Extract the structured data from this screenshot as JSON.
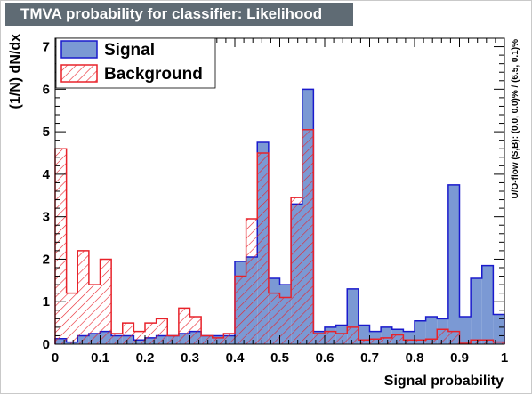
{
  "window": {
    "title": "TMVA probability for classifier: Likelihood"
  },
  "chart_data": {
    "type": "histogram",
    "title": "TMVA probability for classifier: Likelihood",
    "xlabel": "Signal probability",
    "ylabel": "(1/N) dN/dx",
    "side_label": "U/O-flow (S,B): (0.0, 0.0)% / (6.5, 0.1)%",
    "xlim": [
      0,
      1
    ],
    "ylim": [
      0,
      7.2
    ],
    "x_ticks": [
      "0",
      "0.1",
      "0.2",
      "0.3",
      "0.4",
      "0.5",
      "0.6",
      "0.7",
      "0.8",
      "0.9",
      "1"
    ],
    "y_ticks": [
      "0",
      "1",
      "2",
      "3",
      "4",
      "5",
      "6",
      "7"
    ],
    "bin_width": 0.025,
    "legend_position": "top-left",
    "series": [
      {
        "name": "Signal",
        "fill_color": "#7b99d4",
        "line_color": "#1a1acc",
        "fill_style": "solid",
        "values": [
          0.13,
          0.05,
          0.2,
          0.25,
          0.3,
          0.2,
          0.2,
          0.1,
          0.15,
          0.2,
          0.2,
          0.25,
          0.3,
          0.2,
          0.2,
          0.2,
          1.95,
          2.05,
          4.75,
          1.55,
          1.4,
          3.3,
          6.0,
          0.3,
          0.4,
          0.45,
          1.3,
          0.45,
          0.3,
          0.4,
          0.35,
          0.3,
          0.55,
          0.65,
          0.6,
          3.75,
          0.65,
          1.55,
          1.85,
          0.7
        ]
      },
      {
        "name": "Background",
        "fill_color": "#ffffff",
        "line_color": "#e8222a",
        "fill_style": "hatched",
        "values": [
          4.6,
          1.2,
          2.2,
          1.4,
          2.0,
          0.25,
          0.5,
          0.3,
          0.5,
          0.6,
          0.2,
          0.85,
          0.65,
          0.2,
          0.15,
          0.25,
          1.6,
          2.95,
          4.5,
          1.2,
          1.1,
          3.45,
          5.05,
          0.25,
          0.3,
          0.25,
          0.4,
          0.1,
          0.12,
          0.15,
          0.22,
          0.1,
          0.1,
          0.12,
          0.35,
          0.3,
          0.02,
          0.1,
          0.1,
          0.05
        ]
      }
    ]
  }
}
